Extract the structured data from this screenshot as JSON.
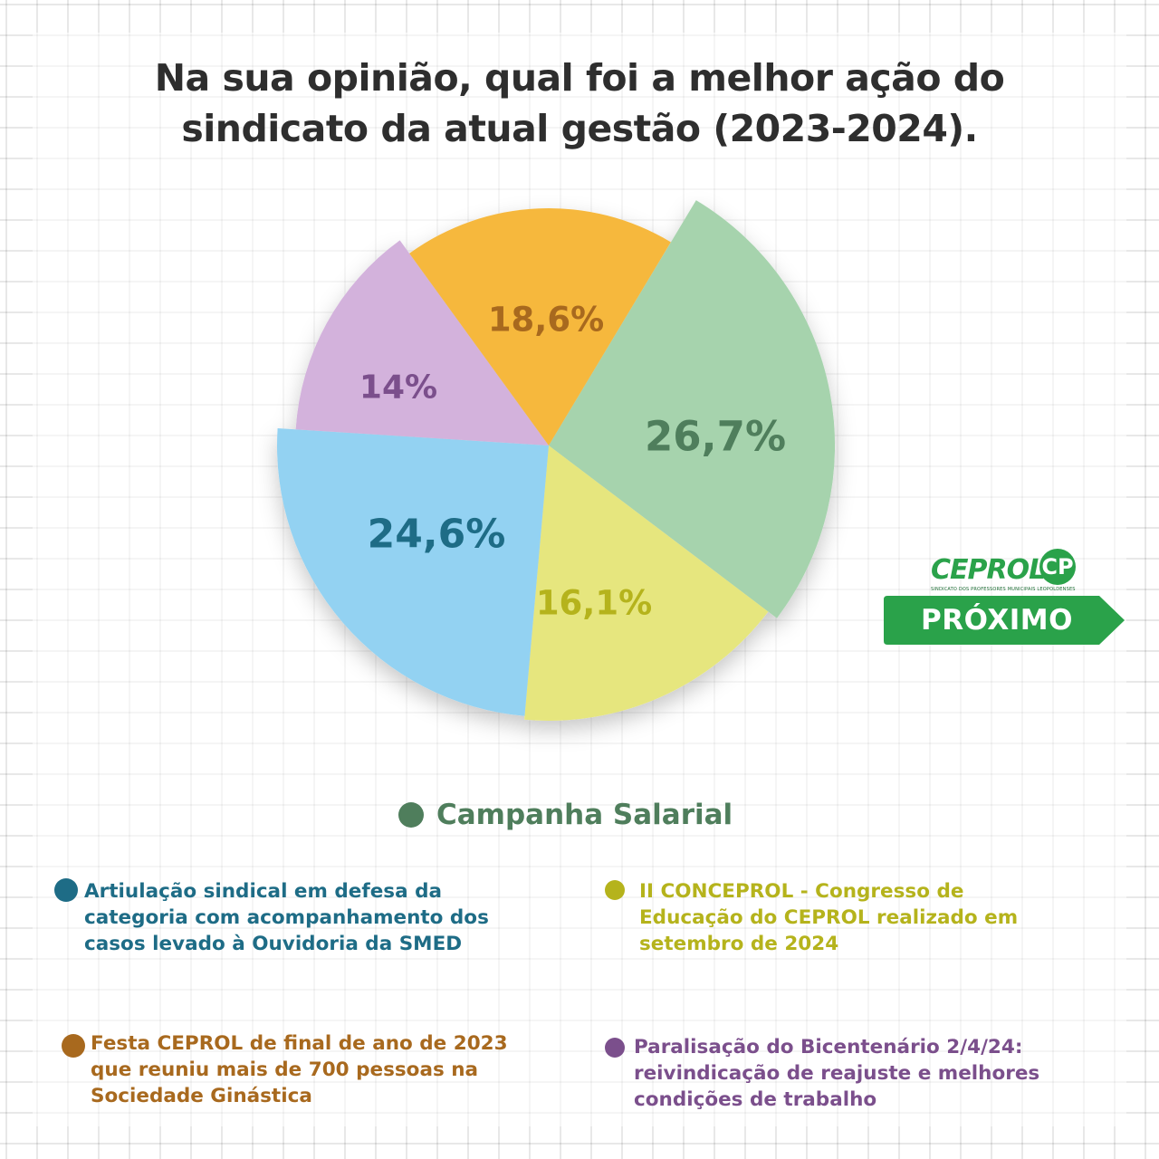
{
  "title_lines": [
    "Na sua opinião, qual foi a melhor ação do",
    "sindicato da atual gestão (2023-2024)."
  ],
  "chart_data": {
    "type": "pie",
    "title": "Na sua opinião, qual foi a melhor ação do sindicato da atual gestão (2023-2024).",
    "slices": [
      {
        "label": "Campanha Salarial",
        "value": 26.7,
        "value_label": "26,7%",
        "color": "#a6d3ad",
        "text_color": "#4f7e5c"
      },
      {
        "label": "II CONCEPROL - Congresso de Educação do CEPROL realizado em setembro de 2024",
        "value": 16.1,
        "value_label": "16,1%",
        "color": "#e6e67e",
        "text_color": "#b5b31c"
      },
      {
        "label": "Artiulação sindical em defesa da categoria com acompanhamento dos casos levado à Ouvidoria da SMED",
        "value": 24.6,
        "value_label": "24,6%",
        "color": "#93d2f2",
        "text_color": "#1e6c86"
      },
      {
        "label": "Paralisação do Bicentenário 2/4/24: reivindicação de reajuste e melhores condições de trabalho",
        "value": 14,
        "value_label": "14%",
        "color": "#d3b2dc",
        "text_color": "#7b4f8c"
      },
      {
        "label": "Festa CEPROL de final de ano de 2023 que reuniu mais de 700 pessoas na Sociedade Ginástica",
        "value": 18.6,
        "value_label": "18,6%",
        "color": "#f6b83e",
        "text_color": "#a8691e"
      }
    ],
    "legend_placement": "bottom"
  },
  "legend": [
    {
      "lines": [
        "Campanha Salarial"
      ],
      "dot_color": "#4f7e5c",
      "text_color": "#4f7e5c"
    },
    {
      "lines": [
        "Artiulação sindical em defesa da",
        "categoria com acompanhamento dos",
        "casos levado à Ouvidoria da SMED"
      ],
      "dot_color": "#1e6c86",
      "text_color": "#1e6c86"
    },
    {
      "lines": [
        "II CONCEPROL - Congresso de",
        "Educação do CEPROL realizado em",
        "setembro de 2024"
      ],
      "dot_color": "#b5b31c",
      "text_color": "#b5b31c"
    },
    {
      "lines": [
        "Festa CEPROL de final de ano de 2023",
        "que reuniu mais de 700 pessoas na",
        "Sociedade Ginástica"
      ],
      "dot_color": "#a8691e",
      "text_color": "#a8691e"
    },
    {
      "lines": [
        "Paralisação do Bicentenário 2/4/24:",
        "reivindicação de reajuste e melhores",
        "condições de trabalho"
      ],
      "dot_color": "#7b4f8c",
      "text_color": "#7b4f8c"
    }
  ],
  "logo": {
    "name": "CEPROL",
    "mark": "CP",
    "subtitle": "SINDICATO DOS PROFESSORES MUNICIPAIS LEOPOLDENSES",
    "color": "#2aa24a"
  },
  "next_button": {
    "label": "PRÓXIMO",
    "color": "#2aa24a"
  }
}
